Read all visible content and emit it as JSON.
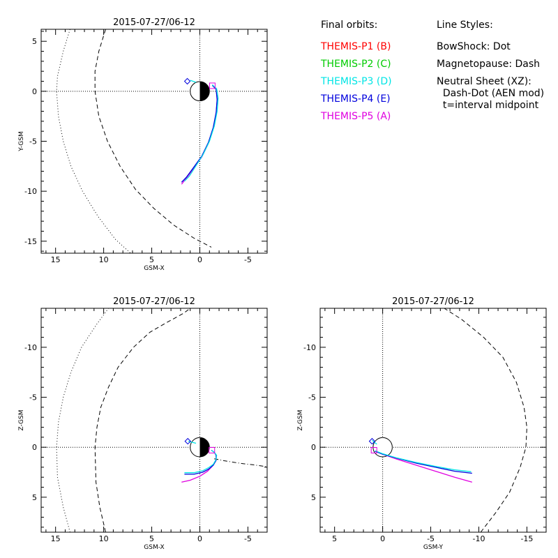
{
  "legend": {
    "orbits_heading": "Final orbits:",
    "orbits": [
      {
        "label": "THEMIS-P1 (B)",
        "color": "#ff0000"
      },
      {
        "label": "THEMIS-P2 (C)",
        "color": "#00cc00"
      },
      {
        "label": "THEMIS-P3 (D)",
        "color": "#00e5e5"
      },
      {
        "label": "THEMIS-P4 (E)",
        "color": "#0000dd"
      },
      {
        "label": "THEMIS-P5 (A)",
        "color": "#e000e0"
      }
    ],
    "styles_heading": "Line Styles:",
    "styles": [
      "BowShock: Dot",
      "Magnetopause: Dash",
      "Neutral Sheet (XZ):",
      "  Dash-Dot (AEN mod)",
      "  t=interval midpoint"
    ]
  },
  "chart_data": [
    {
      "type": "line",
      "title": "2015-07-27/06-12",
      "xlabel": "GSM-X",
      "ylabel": "Y-GSM",
      "xlim": [
        16.5,
        -7
      ],
      "ylim": [
        6.2,
        -16.2
      ],
      "xticks": [
        15,
        10,
        5,
        0,
        -5
      ],
      "yticks": [
        5,
        0,
        -5,
        -10,
        -15
      ],
      "earth": {
        "center": [
          0,
          0
        ],
        "radius": 1,
        "night_side": "right"
      },
      "bow_shock": {
        "x": [
          13.5,
          14.2,
          14.8,
          14.9,
          14.7,
          14.2,
          13.4,
          12.2,
          10.6,
          8.8,
          7.2
        ],
        "y": [
          6.2,
          4,
          1.5,
          0,
          -2.5,
          -5,
          -7.5,
          -10,
          -12.5,
          -14.8,
          -16.2
        ]
      },
      "magnetopause": {
        "x": [
          9.8,
          10.5,
          10.9,
          10.9,
          10.5,
          9.6,
          8.3,
          6.7,
          4.8,
          2.7,
          0.6,
          -1.2
        ],
        "y": [
          6.2,
          4,
          2,
          0,
          -2.5,
          -5,
          -7.5,
          -9.8,
          -11.7,
          -13.4,
          -14.7,
          -15.6
        ]
      },
      "series": [
        {
          "color": "#e000e0",
          "x": [
            1.9,
            1.4,
            0.7,
            -0.2,
            -0.9,
            -1.4,
            -1.7,
            -1.8,
            -1.7,
            -1.3
          ],
          "y": [
            -9.3,
            -8.7,
            -7.8,
            -6.6,
            -5.2,
            -3.7,
            -2.2,
            -0.9,
            0.2,
            0.6
          ]
        },
        {
          "color": "#0000dd",
          "x": [
            1.9,
            1.4,
            0.7,
            -0.2,
            -0.9,
            -1.4,
            -1.7,
            -1.8,
            -1.7,
            -1.3
          ],
          "y": [
            -9.1,
            -8.6,
            -7.7,
            -6.5,
            -5.1,
            -3.6,
            -2.1,
            -0.8,
            0.2,
            0.6
          ]
        },
        {
          "color": "#00e5e5",
          "x": [
            1.6,
            1.1,
            0.5,
            -0.3,
            -1.0,
            -1.5,
            -1.8,
            -1.9,
            -1.75,
            -1.3
          ],
          "y": [
            -9.0,
            -8.5,
            -7.6,
            -6.4,
            -5.0,
            -3.5,
            -2.0,
            -0.7,
            0.25,
            0.65
          ]
        },
        {
          "color": "#00e5e5",
          "x": [
            1.0,
            0.4
          ],
          "y": [
            1.1,
            0.9
          ]
        }
      ],
      "markers": [
        {
          "shape": "diamond",
          "color": "#0000dd",
          "x": 1.3,
          "y": 1.0
        },
        {
          "shape": "square",
          "color": "#e000e0",
          "x": -1.3,
          "y": 0.55
        }
      ]
    },
    {
      "type": "line",
      "title": "2015-07-27/06-12",
      "xlabel": "GSM-X",
      "ylabel": "Z-GSM",
      "xlim": [
        16.5,
        -7
      ],
      "ylim": [
        -13.9,
        8.5
      ],
      "xticks": [
        15,
        10,
        5,
        0,
        -5
      ],
      "yticks": [
        5,
        0,
        -5,
        -10
      ],
      "earth": {
        "center": [
          0,
          0
        ],
        "radius": 1,
        "night_side": "right"
      },
      "bow_shock": {
        "x": [
          13.5,
          14.2,
          14.8,
          14.9,
          14.7,
          14.2,
          13.4,
          12.3,
          10.8,
          9.5
        ],
        "y": [
          8.5,
          6,
          3,
          0,
          -2.5,
          -5,
          -7.5,
          -10,
          -12.2,
          -13.9
        ]
      },
      "magnetopause": {
        "x": [
          9.8,
          10.4,
          10.8,
          10.9,
          10.7,
          10.3,
          9.5,
          8.5,
          6.9,
          5.2,
          3.4,
          1.7,
          1.0
        ],
        "y": [
          8.5,
          6,
          3.5,
          0,
          -2,
          -4,
          -6,
          -8,
          -10,
          -11.5,
          -12.5,
          -13.4,
          -13.9
        ]
      },
      "neutral_sheet": {
        "x": [
          -1.5,
          -2.5,
          -3.5,
          -4.5,
          -5.5,
          -7
        ],
        "y": [
          1.15,
          1.35,
          1.5,
          1.65,
          1.75,
          1.95
        ]
      },
      "series": [
        {
          "color": "#e000e0",
          "x": [
            1.9,
            1.0,
            0.0,
            -0.8,
            -1.3,
            -1.7,
            -1.7,
            -1.5,
            -1.2
          ],
          "y": [
            3.5,
            3.3,
            2.9,
            2.4,
            1.9,
            1.3,
            0.8,
            0.5,
            0.3
          ]
        },
        {
          "color": "#0000dd",
          "x": [
            1.6,
            0.6,
            -0.3,
            -0.9,
            -1.4,
            -1.7,
            -1.7,
            -1.5,
            -1.2
          ],
          "y": [
            2.7,
            2.7,
            2.5,
            2.2,
            1.8,
            1.3,
            0.8,
            0.5,
            0.3
          ]
        },
        {
          "color": "#00e5e5",
          "x": [
            1.6,
            0.6,
            -0.3,
            -0.9,
            -1.4,
            -1.7,
            -1.75,
            -1.5,
            -1.2
          ],
          "y": [
            2.55,
            2.55,
            2.35,
            2.05,
            1.7,
            1.2,
            0.8,
            0.5,
            0.3
          ]
        },
        {
          "color": "#00e5e5",
          "x": [
            1.2,
            0.4
          ],
          "y": [
            -0.6,
            -0.4
          ]
        }
      ],
      "markers": [
        {
          "shape": "diamond",
          "color": "#0000dd",
          "x": 1.25,
          "y": -0.6
        },
        {
          "shape": "square",
          "color": "#e000e0",
          "x": -1.25,
          "y": 0.3
        }
      ]
    },
    {
      "type": "line",
      "title": "2015-07-27/06-12",
      "xlabel": "GSM-Y",
      "ylabel": "Z-GSM",
      "xlim": [
        6.5,
        -17
      ],
      "ylim": [
        -13.9,
        8.5
      ],
      "xticks": [
        5,
        0,
        -5,
        -10,
        -15
      ],
      "yticks": [
        5,
        0,
        -5,
        -10
      ],
      "earth": {
        "center": [
          0,
          0
        ],
        "radius": 1,
        "night_side": "none"
      },
      "magnetopause": {
        "x": [
          -10.2,
          -11.8,
          -13.2,
          -14.3,
          -14.9,
          -15.0,
          -14.7,
          -13.9,
          -12.5,
          -10.5,
          -8.2,
          -6.4
        ],
        "y": [
          8.5,
          6.5,
          4.5,
          2,
          0,
          -2,
          -4,
          -6.5,
          -9,
          -11,
          -12.8,
          -13.9
        ]
      },
      "series": [
        {
          "color": "#e000e0",
          "x": [
            -9.3,
            -7.5,
            -5.5,
            -3.5,
            -1.5,
            0.0,
            0.8
          ],
          "y": [
            3.5,
            3.0,
            2.4,
            1.8,
            1.2,
            0.7,
            0.4
          ]
        },
        {
          "color": "#0000dd",
          "x": [
            -9.3,
            -7.5,
            -5.5,
            -3.5,
            -1.5,
            0.0,
            0.8
          ],
          "y": [
            2.6,
            2.4,
            2.0,
            1.6,
            1.1,
            0.7,
            0.4
          ]
        },
        {
          "color": "#00e5e5",
          "x": [
            -9.2,
            -7.4,
            -5.4,
            -3.4,
            -1.4,
            0.0,
            0.8
          ],
          "y": [
            2.45,
            2.25,
            1.9,
            1.5,
            1.05,
            0.65,
            0.35
          ]
        },
        {
          "color": "#00e5e5",
          "x": [
            1.1,
            0.6
          ],
          "y": [
            -0.7,
            -0.3
          ]
        }
      ],
      "markers": [
        {
          "shape": "diamond",
          "color": "#0000dd",
          "x": 1.1,
          "y": -0.6
        },
        {
          "shape": "square",
          "color": "#e000e0",
          "x": 0.9,
          "y": 0.3
        }
      ]
    }
  ]
}
